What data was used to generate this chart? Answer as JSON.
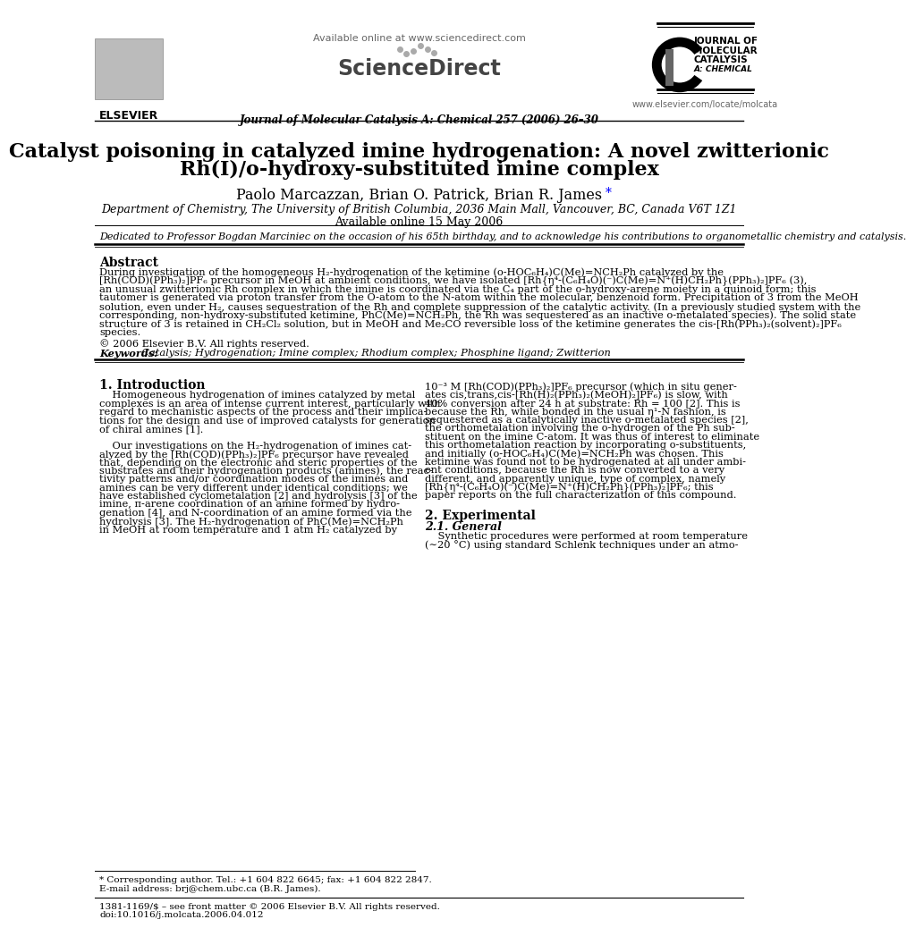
{
  "title_line1": "Catalyst poisoning in catalyzed imine hydrogenation: A novel zwitterionic",
  "title_line2": "Rh(I)/o-hydroxy-substituted imine complex",
  "authors": "Paolo Marcazzan, Brian O. Patrick, Brian R. James",
  "authors_asterisk": "*",
  "affiliation": "Department of Chemistry, The University of British Columbia, 2036 Main Mall, Vancouver, BC, Canada V6T 1Z1",
  "available_online": "Available online 15 May 2006",
  "dedication": "Dedicated to Professor Bogdan Marciniec on the occasion of his 65th birthday, and to acknowledge his contributions to organometallic chemistry and catalysis.",
  "abstract_title": "Abstract",
  "abstract_lines": [
    "During investigation of the homogeneous H₂-hydrogenation of the ketimine (o-HOC₆H₄)C(Me)=NCH₂Ph catalyzed by the",
    "[Rh(COD)(PPh₃)₂]PF₆ precursor in MeOH at ambient conditions, we have isolated [Rh{η⁴-(C₆H₄O)(⁻)C(Me)=N⁺(H)CH₂Ph}(PPh₃)₂]PF₆ (3),",
    "an unusual zwitterionic Rh complex in which the imine is coordinated via the C₄ part of the o-hydroxy-arene moiety in a quinoid form; this",
    "tautomer is generated via proton transfer from the O-atom to the N-atom within the molecular, benzenoid form. Precipitation of 3 from the MeOH",
    "solution, even under H₂, causes sequestration of the Rh and complete suppression of the catalytic activity. (In a previously studied system with the",
    "corresponding, non-hydroxy-substituted ketimine, PhC(Me)=NCH₂Ph, the Rh was sequestered as an inactive o-metalated species). The solid state",
    "structure of 3 is retained in CH₂Cl₂ solution, but in MeOH and Me₂CO reversible loss of the ketimine generates the cis-[Rh(PPh₃)₂(solvent)₂]PF₆",
    "species."
  ],
  "copyright": "© 2006 Elsevier B.V. All rights reserved.",
  "keywords_label": "Keywords:",
  "keywords": "  Catalysis; Hydrogenation; Imine complex; Rhodium complex; Phosphine ligand; Zwitterion",
  "intro_title": "1. Introduction",
  "intro_col1_lines": [
    "    Homogeneous hydrogenation of imines catalyzed by metal",
    "complexes is an area of intense current interest, particularly with",
    "regard to mechanistic aspects of the process and their implica-",
    "tions for the design and use of improved catalysts for generation",
    "of chiral amines [1].",
    "",
    "    Our investigations on the H₂-hydrogenation of imines cat-",
    "alyzed by the [Rh(COD)(PPh₃)₂]PF₆ precursor have revealed",
    "that, depending on the electronic and steric properties of the",
    "substrates and their hydrogenation products (amines), the reac-",
    "tivity patterns and/or coordination modes of the imines and",
    "amines can be very different under identical conditions; we",
    "have established cyclometalation [2] and hydrolysis [3] of the",
    "imine, π-arene coordination of an amine formed by hydro-",
    "genation [4], and N-coordination of an amine formed via the",
    "hydrolysis [3]. The H₂-hydrogenation of PhC(Me)=NCH₂Ph",
    "in MeOH at room temperature and 1 atm H₂ catalyzed by"
  ],
  "intro_col2_lines": [
    "10⁻³ M [Rh(COD)(PPh₃)₂]PF₆ precursor (which in situ gener-",
    "ates cis,trans,cis-[Rh(H)₂(PPh₃)₂(MeOH)₂]PF₆) is slow, with",
    "40% conversion after 24 h at substrate: Rh = 100 [2]. This is",
    "because the Rh, while bonded in the usual η¹-N fashion, is",
    "sequestered as a catalytically inactive o-metalated species [2],",
    "the orthometalation involving the o-hydrogen of the Ph sub-",
    "stituent on the imine C-atom. It was thus of interest to eliminate",
    "this orthometalation reaction by incorporating o-substituents,",
    "and initially (o-HOC₆H₄)C(Me)=NCH₂Ph was chosen. This",
    "ketimine was found not to be hydrogenated at all under ambi-",
    "ent conditions, because the Rh is now converted to a very",
    "different, and apparently unique, type of complex, namely",
    "[Rh{η⁴-(C₆H₄O)(⁻)C(Me)=N⁺(H)CH₂Ph}(PPh₃)₂]PF₆; this",
    "paper reports on the full characterization of this compound."
  ],
  "section2_title": "2. Experimental",
  "section21_title": "2.1. General",
  "section21_lines": [
    "    Synthetic procedures were performed at room temperature",
    "(∼20 °C) using standard Schlenk techniques under an atmo-"
  ],
  "journal_name": "Journal of Molecular Catalysis A: Chemical 257 (2006) 26–30",
  "available_online_header": "Available online at www.sciencedirect.com",
  "elsevier_text": "ELSEVIER",
  "journal_right_lines": [
    "JOURNAL OF",
    "MOLECULAR",
    "CATALYSIS",
    "A: CHEMICAL"
  ],
  "url_right": "www.elsevier.com/locate/molcata",
  "footnote_star": "* Corresponding author. Tel.: +1 604 822 6645; fax: +1 604 822 2847.",
  "footnote_email": "E-mail address: brj@chem.ubc.ca (B.R. James).",
  "footnote_issn": "1381-1169/$ – see front matter © 2006 Elsevier B.V. All rights reserved.",
  "footnote_doi": "doi:10.1016/j.molcata.2006.04.012",
  "background_color": "#ffffff",
  "text_color": "#000000"
}
